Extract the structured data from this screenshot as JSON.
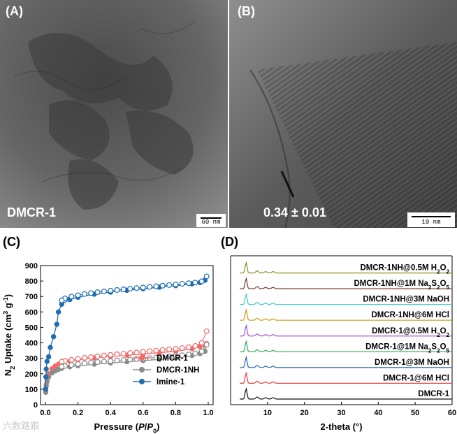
{
  "panels": {
    "a": {
      "letter": "(A)",
      "caption": "DMCR-1",
      "scalebar": "60 nm"
    },
    "b": {
      "letter": "(B)",
      "caption": "0.34 ± 0.01",
      "scalebar": "10 nm"
    },
    "c": {
      "letter": "(C)"
    },
    "d": {
      "letter": "(D)"
    }
  },
  "watermark": "六数路跟",
  "chart_data": [
    {
      "type": "scatter",
      "xlabel": "Pressure (P/P0)",
      "ylabel": "N2 Uptake (cm3 g-1)",
      "xlim": [
        -0.03,
        1.03
      ],
      "ylim": [
        0,
        900
      ],
      "x_ticks": [
        "0.0",
        "0.2",
        "0.4",
        "0.6",
        "0.8",
        "1.0"
      ],
      "y_ticks": [
        "0",
        "100",
        "200",
        "300",
        "400",
        "500",
        "600",
        "700",
        "800",
        "900"
      ],
      "legend": "bottom-right",
      "grid": false,
      "series": [
        {
          "name": "DMCR-1",
          "color": "#f26b6b",
          "adsorption": {
            "x": [
              0.002,
              0.005,
              0.01,
              0.02,
              0.04,
              0.06,
              0.08,
              0.1,
              0.15,
              0.2,
              0.3,
              0.4,
              0.5,
              0.6,
              0.7,
              0.8,
              0.9,
              0.95,
              0.98,
              0.99
            ],
            "y": [
              90,
              130,
              165,
              200,
              232,
              250,
              262,
              270,
              282,
              290,
              302,
              312,
              320,
              328,
              336,
              345,
              362,
              375,
              385,
              395
            ]
          },
          "desorption": {
            "x": [
              0.99,
              0.96,
              0.92,
              0.88,
              0.84,
              0.8,
              0.76,
              0.72,
              0.68,
              0.64,
              0.6,
              0.56,
              0.52,
              0.48,
              0.44,
              0.4,
              0.36,
              0.32,
              0.28,
              0.24,
              0.2,
              0.16,
              0.12,
              0.1
            ],
            "y": [
              475,
              400,
              380,
              372,
              366,
              362,
              358,
              354,
              350,
              346,
              342,
              338,
              334,
              330,
              326,
              322,
              318,
              313,
              308,
              303,
              297,
              290,
              282,
              278
            ]
          }
        },
        {
          "name": "DMCR-1NH",
          "color": "#8a8a8a",
          "adsorption": {
            "x": [
              0.002,
              0.005,
              0.01,
              0.02,
              0.04,
              0.06,
              0.08,
              0.1,
              0.15,
              0.2,
              0.3,
              0.4,
              0.5,
              0.6,
              0.7,
              0.8,
              0.9,
              0.95,
              0.98,
              0.99
            ],
            "y": [
              80,
              120,
              150,
              180,
              205,
              218,
              228,
              235,
              245,
              252,
              262,
              270,
              278,
              285,
              293,
              302,
              318,
              330,
              345,
              388
            ]
          },
          "desorption": {
            "x": [
              0.99,
              0.96,
              0.92,
              0.88,
              0.84,
              0.8,
              0.76,
              0.72,
              0.68,
              0.64,
              0.6,
              0.56,
              0.52,
              0.48,
              0.44,
              0.4,
              0.36,
              0.32,
              0.28,
              0.24,
              0.2,
              0.16,
              0.12,
              0.1
            ],
            "y": [
              388,
              345,
              332,
              325,
              320,
              316,
              312,
              308,
              305,
              302,
              298,
              295,
              292,
              289,
              286,
              282,
              279,
              276,
              272,
              268,
              263,
              257,
              250,
              246
            ]
          }
        },
        {
          "name": "Imine-1",
          "color": "#1f6db3",
          "adsorption": {
            "x": [
              0.001,
              0.003,
              0.005,
              0.01,
              0.02,
              0.03,
              0.05,
              0.07,
              0.08,
              0.1,
              0.15,
              0.2,
              0.3,
              0.4,
              0.5,
              0.6,
              0.7,
              0.8,
              0.9,
              0.95,
              0.98,
              0.99
            ],
            "y": [
              100,
              180,
              230,
              280,
              310,
              370,
              440,
              520,
              600,
              650,
              680,
              695,
              715,
              728,
              740,
              750,
              760,
              770,
              782,
              790,
              805,
              830
            ]
          },
          "desorption": {
            "x": [
              0.99,
              0.96,
              0.92,
              0.88,
              0.84,
              0.8,
              0.76,
              0.72,
              0.68,
              0.64,
              0.6,
              0.56,
              0.52,
              0.48,
              0.44,
              0.4,
              0.36,
              0.32,
              0.28,
              0.24,
              0.2,
              0.16,
              0.12,
              0.1
            ],
            "y": [
              830,
              798,
              790,
              786,
              782,
              778,
              774,
              770,
              766,
              762,
              758,
              754,
              750,
              746,
              742,
              738,
              733,
              728,
              722,
              716,
              708,
              700,
              688,
              675
            ]
          }
        }
      ]
    },
    {
      "type": "line",
      "xlabel": "2-theta (°)",
      "xlim": [
        0,
        60
      ],
      "x_ticks": [
        "10",
        "20",
        "30",
        "40",
        "50",
        "60"
      ],
      "ylabel": "",
      "grid": false,
      "series": [
        {
          "name": "DMCR-1",
          "color": "#111111"
        },
        {
          "name": "DMCR-1@6M HCl",
          "color": "#e23b3b"
        },
        {
          "name": "DMCR-1@3M NaOH",
          "color": "#1f5fb0"
        },
        {
          "name": "DMCR-1@1M Na2S2O5",
          "color": "#2fa84f"
        },
        {
          "name": "DMCR-1@0.5M H2O2",
          "color": "#a04ec9"
        },
        {
          "name": "DMCR-1NH@6M HCl",
          "color": "#c99a10"
        },
        {
          "name": "DMCR-1NH@3M NaOH",
          "color": "#35c6c6"
        },
        {
          "name": "DMCR-1NH@1M Na2S2O5",
          "color": "#7a3a2e"
        },
        {
          "name": "DMCR-1NH@0.5M H2O2",
          "color": "#8d8d1c"
        }
      ],
      "peak_x": [
        4.2,
        7.2,
        9.5,
        11.5
      ]
    }
  ]
}
